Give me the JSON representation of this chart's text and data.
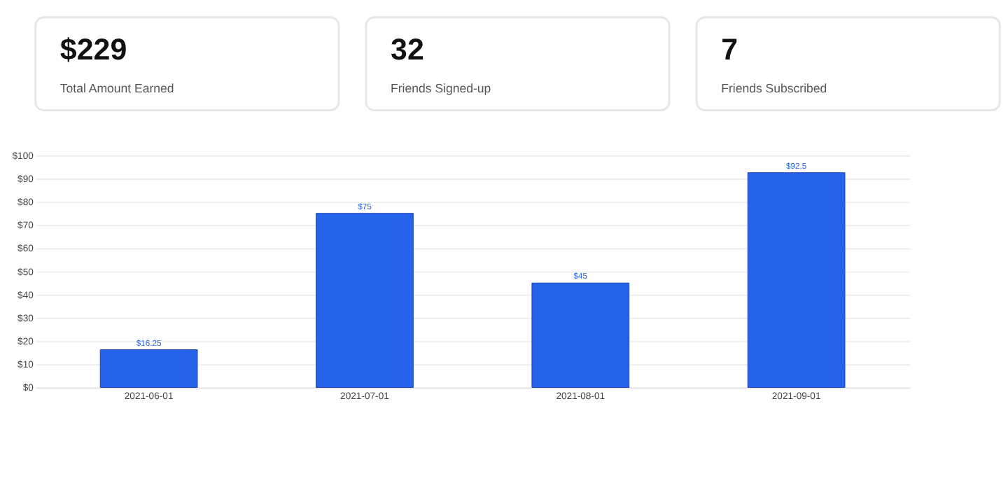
{
  "chart_data": [
    {
      "type": "other",
      "title": "$229",
      "subtitle": "Total Amount Earned"
    },
    {
      "type": "other",
      "title": "32",
      "subtitle": "Friends Signed-up"
    },
    {
      "type": "other",
      "title": "7",
      "subtitle": "Friends Subscribed"
    },
    {
      "type": "bar",
      "categories": [
        "2021-06-01",
        "2021-07-01",
        "2021-08-01",
        "2021-09-01"
      ],
      "values": [
        16.25,
        75,
        45,
        92.5
      ],
      "color": "#2563eb",
      "value_labels": [
        "$16.25",
        "$75",
        "$45",
        "$92.5"
      ],
      "ylim": [
        0,
        100
      ],
      "yticks": [
        {
          "value": 0,
          "label": "$0"
        },
        {
          "value": 10,
          "label": "$10"
        },
        {
          "value": 20,
          "label": "$20"
        },
        {
          "value": 30,
          "label": "$30"
        },
        {
          "value": 40,
          "label": "$40"
        },
        {
          "value": 50,
          "label": "$50"
        },
        {
          "value": 60,
          "label": "$60"
        },
        {
          "value": 70,
          "label": "$70"
        },
        {
          "value": 80,
          "label": "$80"
        },
        {
          "value": 90,
          "label": "$90"
        },
        {
          "value": 100,
          "label": "$100"
        }
      ],
      "grid": "y"
    }
  ]
}
